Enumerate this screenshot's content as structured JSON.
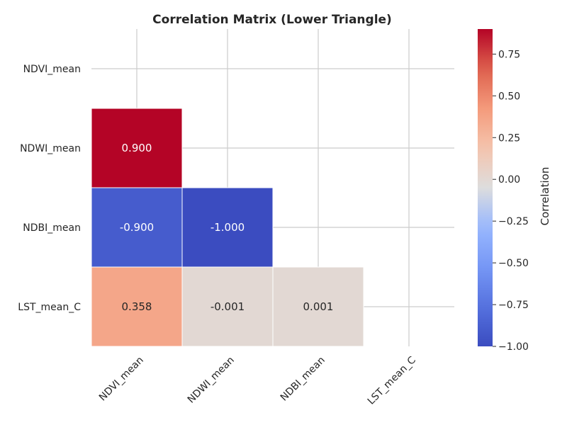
{
  "chart_data": {
    "type": "heatmap",
    "title": "Correlation Matrix (Lower Triangle)",
    "variables": [
      "NDVI_mean",
      "NDWI_mean",
      "NDBI_mean",
      "LST_mean_C"
    ],
    "matrix": [
      [
        null,
        null,
        null,
        null
      ],
      [
        0.9,
        null,
        null,
        null
      ],
      [
        -0.9,
        -1.0,
        null,
        null
      ],
      [
        0.358,
        -0.001,
        0.001,
        null
      ]
    ],
    "cell_labels": [
      [
        null,
        null,
        null,
        null
      ],
      [
        "0.900",
        null,
        null,
        null
      ],
      [
        "-0.900",
        "-1.000",
        null,
        null
      ],
      [
        "0.358",
        "-0.001",
        "0.001",
        null
      ]
    ],
    "mask": "upper triangle including diagonal",
    "colormap": "coolwarm",
    "vmin": -1.0,
    "vmax": 0.9,
    "colorbar": {
      "label": "Correlation",
      "ticks": [
        0.75,
        0.5,
        0.25,
        0.0,
        -0.25,
        -0.5,
        -0.75,
        -1.0
      ],
      "tick_labels": [
        "0.75",
        "0.50",
        "0.25",
        "0.00",
        "−0.25",
        "−0.50",
        "−0.75",
        "−1.00"
      ]
    },
    "grid": true
  }
}
